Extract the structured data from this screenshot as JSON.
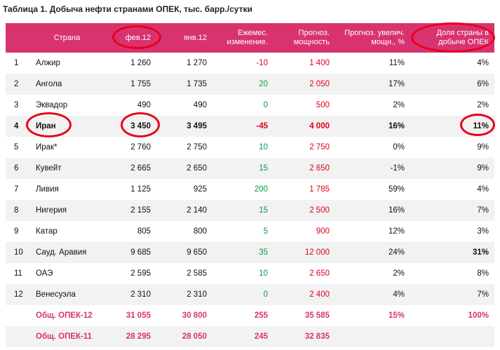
{
  "title": "Таблица 1. Добыча нефти странами ОПЕК, тыс. барр./сутки",
  "headers": {
    "num": "",
    "country": "Страна",
    "feb": "фев.12",
    "jan": "янв.12",
    "change": "Ежемес. изменение.",
    "capacity": "Прогноз. мощность",
    "growth": "Прогноз. увелич. мощн., %",
    "share": "Доля страны в добыче ОПЕК"
  },
  "rows": [
    {
      "num": "1",
      "country": "Алжир",
      "feb": "1 260",
      "jan": "1 270",
      "change": "-10",
      "capacity": "1 400",
      "growth": "11%",
      "share": "4%"
    },
    {
      "num": "2",
      "country": "Ангола",
      "feb": "1 755",
      "jan": "1 735",
      "change": "20",
      "capacity": "2 050",
      "growth": "17%",
      "share": "6%"
    },
    {
      "num": "3",
      "country": "Эквадор",
      "feb": "490",
      "jan": "490",
      "change": "0",
      "capacity": "500",
      "growth": "2%",
      "share": "2%"
    },
    {
      "num": "4",
      "country": "Иран",
      "feb": "3 450",
      "jan": "3 495",
      "change": "-45",
      "capacity": "4 000",
      "growth": "16%",
      "share": "11%"
    },
    {
      "num": "5",
      "country": "Ирак*",
      "feb": "2 760",
      "jan": "2 750",
      "change": "10",
      "capacity": "2 750",
      "growth": "0%",
      "share": "9%"
    },
    {
      "num": "6",
      "country": "Кувейт",
      "feb": "2 665",
      "jan": "2 650",
      "change": "15",
      "capacity": "2 650",
      "growth": "-1%",
      "share": "9%"
    },
    {
      "num": "7",
      "country": "Ливия",
      "feb": "1 125",
      "jan": "925",
      "change": "200",
      "capacity": "1 785",
      "growth": "59%",
      "share": "4%"
    },
    {
      "num": "8",
      "country": "Нигерия",
      "feb": "2 155",
      "jan": "2 140",
      "change": "15",
      "capacity": "2 500",
      "growth": "16%",
      "share": "7%"
    },
    {
      "num": "9",
      "country": "Катар",
      "feb": "805",
      "jan": "800",
      "change": "5",
      "capacity": "900",
      "growth": "12%",
      "share": "3%"
    },
    {
      "num": "10",
      "country": "Сауд. Аравия",
      "feb": "9 685",
      "jan": "9 650",
      "change": "35",
      "capacity": "12 000",
      "growth": "24%",
      "share": "31%"
    },
    {
      "num": "11",
      "country": "ОАЭ",
      "feb": "2 595",
      "jan": "2 585",
      "change": "10",
      "capacity": "2 650",
      "growth": "2%",
      "share": "8%"
    },
    {
      "num": "12",
      "country": "Венесуэла",
      "feb": "2 310",
      "jan": "2 310",
      "change": "0",
      "capacity": "2 400",
      "growth": "4%",
      "share": "7%"
    }
  ],
  "totals": [
    {
      "country": "Общ. ОПЕК-12",
      "feb": "31 055",
      "jan": "30 800",
      "change": "255",
      "capacity": "35 585",
      "growth": "15%",
      "share": "100%"
    },
    {
      "country": "Общ. ОПЕК-11",
      "feb": "28 295",
      "jan": "28 050",
      "change": "245",
      "capacity": "32 835",
      "growth": "",
      "share": ""
    }
  ],
  "colors": {
    "header_bg": "#d8336f",
    "negative": "#e0001b",
    "positive": "#0a9944",
    "capacity": "#e0001b",
    "total_text": "#d8336f",
    "highlight_oval": "#e8001c"
  }
}
